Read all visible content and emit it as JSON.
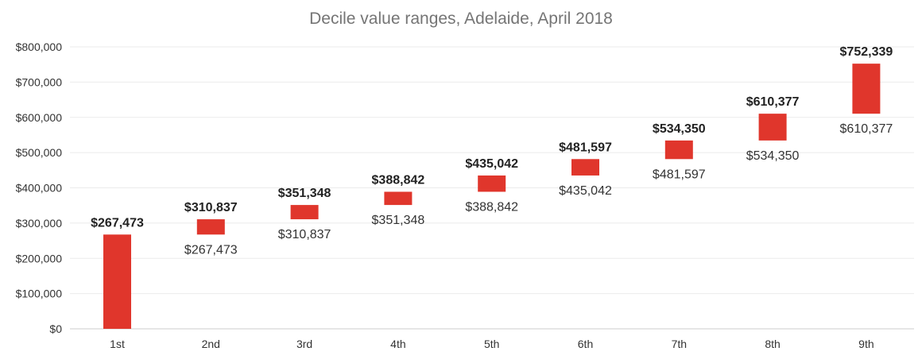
{
  "chart_data": {
    "type": "bar",
    "subtype": "floating-range",
    "title": "Decile value ranges, Adelaide, April 2018",
    "xlabel": "",
    "ylabel": "",
    "ylim": [
      0,
      800000
    ],
    "yticks": [
      0,
      100000,
      200000,
      300000,
      400000,
      500000,
      600000,
      700000,
      800000
    ],
    "ytick_labels": [
      "$0",
      "$100,000",
      "$200,000",
      "$300,000",
      "$400,000",
      "$500,000",
      "$600,000",
      "$700,000",
      "$800,000"
    ],
    "grid": true,
    "legend": "none",
    "bar_color": "#e0362c",
    "categories": [
      "1st",
      "2nd",
      "3rd",
      "4th",
      "5th",
      "6th",
      "7th",
      "8th",
      "9th"
    ],
    "low": [
      0,
      267473,
      310837,
      351348,
      388842,
      435042,
      481597,
      534350,
      610377
    ],
    "high": [
      267473,
      310837,
      351348,
      388842,
      435042,
      481597,
      534350,
      610377,
      752339
    ],
    "high_labels": [
      "$267,473",
      "$310,837",
      "$351,348",
      "$388,842",
      "$435,042",
      "$481,597",
      "$534,350",
      "$610,377",
      "$752,339"
    ],
    "low_labels": [
      "",
      "$267,473",
      "$310,837",
      "$351,348",
      "$388,842",
      "$435,042",
      "$481,597",
      "$534,350",
      "$610,377"
    ]
  }
}
